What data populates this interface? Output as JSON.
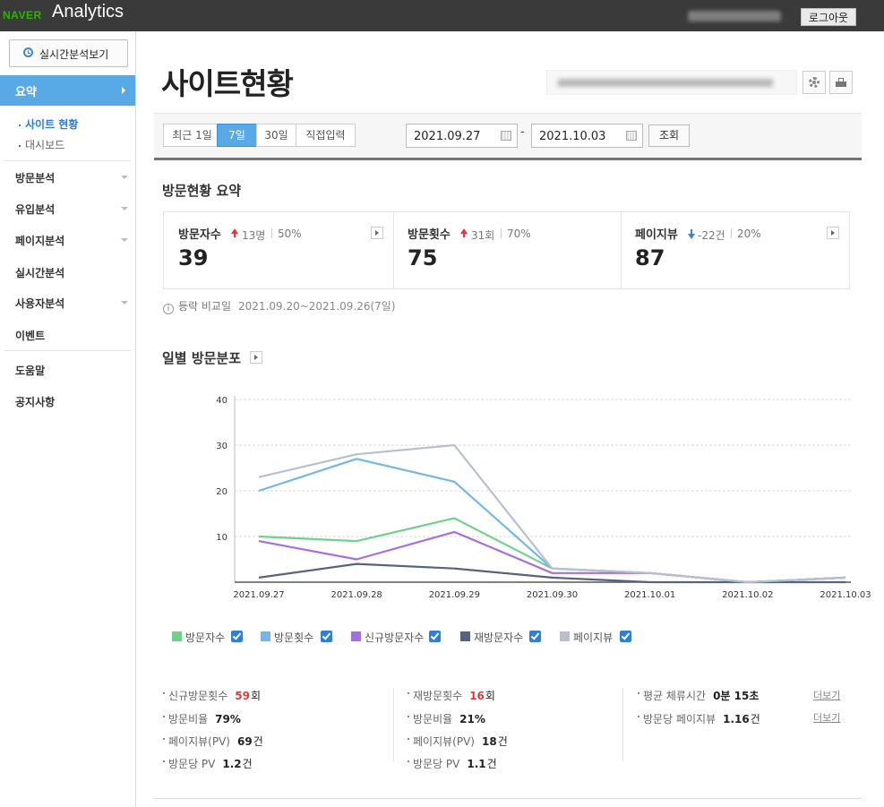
{
  "header": {
    "brand_naver": "NAVER",
    "brand_app": "Analytics",
    "logout_label": "로그아웃"
  },
  "sidebar": {
    "realtime_button": "실시간분석보기",
    "active_menu": "요약",
    "submenu": [
      "사이트 현황",
      "대시보드"
    ],
    "menus": [
      {
        "label": "방문분석",
        "expandable": true
      },
      {
        "label": "유입분석",
        "expandable": true
      },
      {
        "label": "페이지분석",
        "expandable": true
      },
      {
        "label": "실시간분석",
        "expandable": false
      },
      {
        "label": "사용자분석",
        "expandable": true
      },
      {
        "label": "이벤트",
        "expandable": false
      }
    ],
    "bottom_menus": [
      "도움말",
      "공지사항"
    ]
  },
  "page": {
    "title": "사이트현황"
  },
  "filter": {
    "periods": [
      "최근 1일",
      "7일",
      "30일",
      "직접입력"
    ],
    "selected_period": "7일",
    "start_date": "2021.09.27",
    "end_date": "2021.10.03",
    "date_separator": "-",
    "search_label": "조회"
  },
  "summary": {
    "title": "방문현황 요약",
    "cards": [
      {
        "label": "방문자수",
        "direction": "up",
        "delta": "13명",
        "pct": "50%",
        "value": "39"
      },
      {
        "label": "방문횟수",
        "direction": "up",
        "delta": "31회",
        "pct": "70%",
        "value": "75"
      },
      {
        "label": "페이지뷰",
        "direction": "down",
        "delta": "-22건",
        "pct": "20%",
        "value": "87"
      }
    ],
    "compare_label": "등락 비교일",
    "compare_range": "2021.09.20~2021.09.26(7일)"
  },
  "daily": {
    "title": "일별 방문분포"
  },
  "chart_data": {
    "type": "line",
    "title": "일별 방문분포",
    "x": [
      "2021.09.27",
      "2021.09.28",
      "2021.09.29",
      "2021.09.30",
      "2021.10.01",
      "2021.10.02",
      "2021.10.03"
    ],
    "y_ticks": [
      "10",
      "20",
      "30",
      "40"
    ],
    "ylim": [
      0,
      40
    ],
    "grid": true,
    "legend_position": "bottom",
    "series": [
      {
        "name": "방문자수",
        "color": "#6fd08a",
        "values": [
          10,
          9,
          14,
          3,
          2,
          0,
          1
        ]
      },
      {
        "name": "방문횟수",
        "color": "#72b7ea",
        "values": [
          20,
          27,
          22,
          3,
          2,
          0,
          1
        ]
      },
      {
        "name": "신규방문자수",
        "color": "#a56fe0",
        "values": [
          9,
          5,
          11,
          2,
          2,
          0,
          1
        ]
      },
      {
        "name": "재방문자수",
        "color": "#56637a",
        "values": [
          1,
          4,
          3,
          1,
          0,
          0,
          0
        ]
      },
      {
        "name": "페이지뷰",
        "color": "#b7c0cc",
        "values": [
          23,
          28,
          30,
          3,
          2,
          0,
          1
        ]
      }
    ]
  },
  "stats": {
    "col1": [
      {
        "label": "신규방문횟수",
        "value": "59",
        "unit": "회",
        "highlight": true
      },
      {
        "label": "방문비율",
        "value": "79%",
        "unit": "",
        "highlight": false
      },
      {
        "label": "페이지뷰(PV)",
        "value": "69",
        "unit": "건",
        "highlight": false
      },
      {
        "label": "방문당 PV",
        "value": "1.2",
        "unit": "건",
        "highlight": false
      }
    ],
    "col2": [
      {
        "label": "재방문횟수",
        "value": "16",
        "unit": "회",
        "highlight": true
      },
      {
        "label": "방문비율",
        "value": "21%",
        "unit": "",
        "highlight": false
      },
      {
        "label": "페이지뷰(PV)",
        "value": "18",
        "unit": "건",
        "highlight": false
      },
      {
        "label": "방문당 PV",
        "value": "1.1",
        "unit": "건",
        "highlight": false
      }
    ],
    "col3": [
      {
        "label": "평균 체류시간",
        "value": "0분 15초",
        "unit": "",
        "highlight": false
      },
      {
        "label": "방문당 페이지뷰",
        "value": "1.16",
        "unit": "건",
        "highlight": false
      }
    ],
    "more_label": "더보기"
  }
}
